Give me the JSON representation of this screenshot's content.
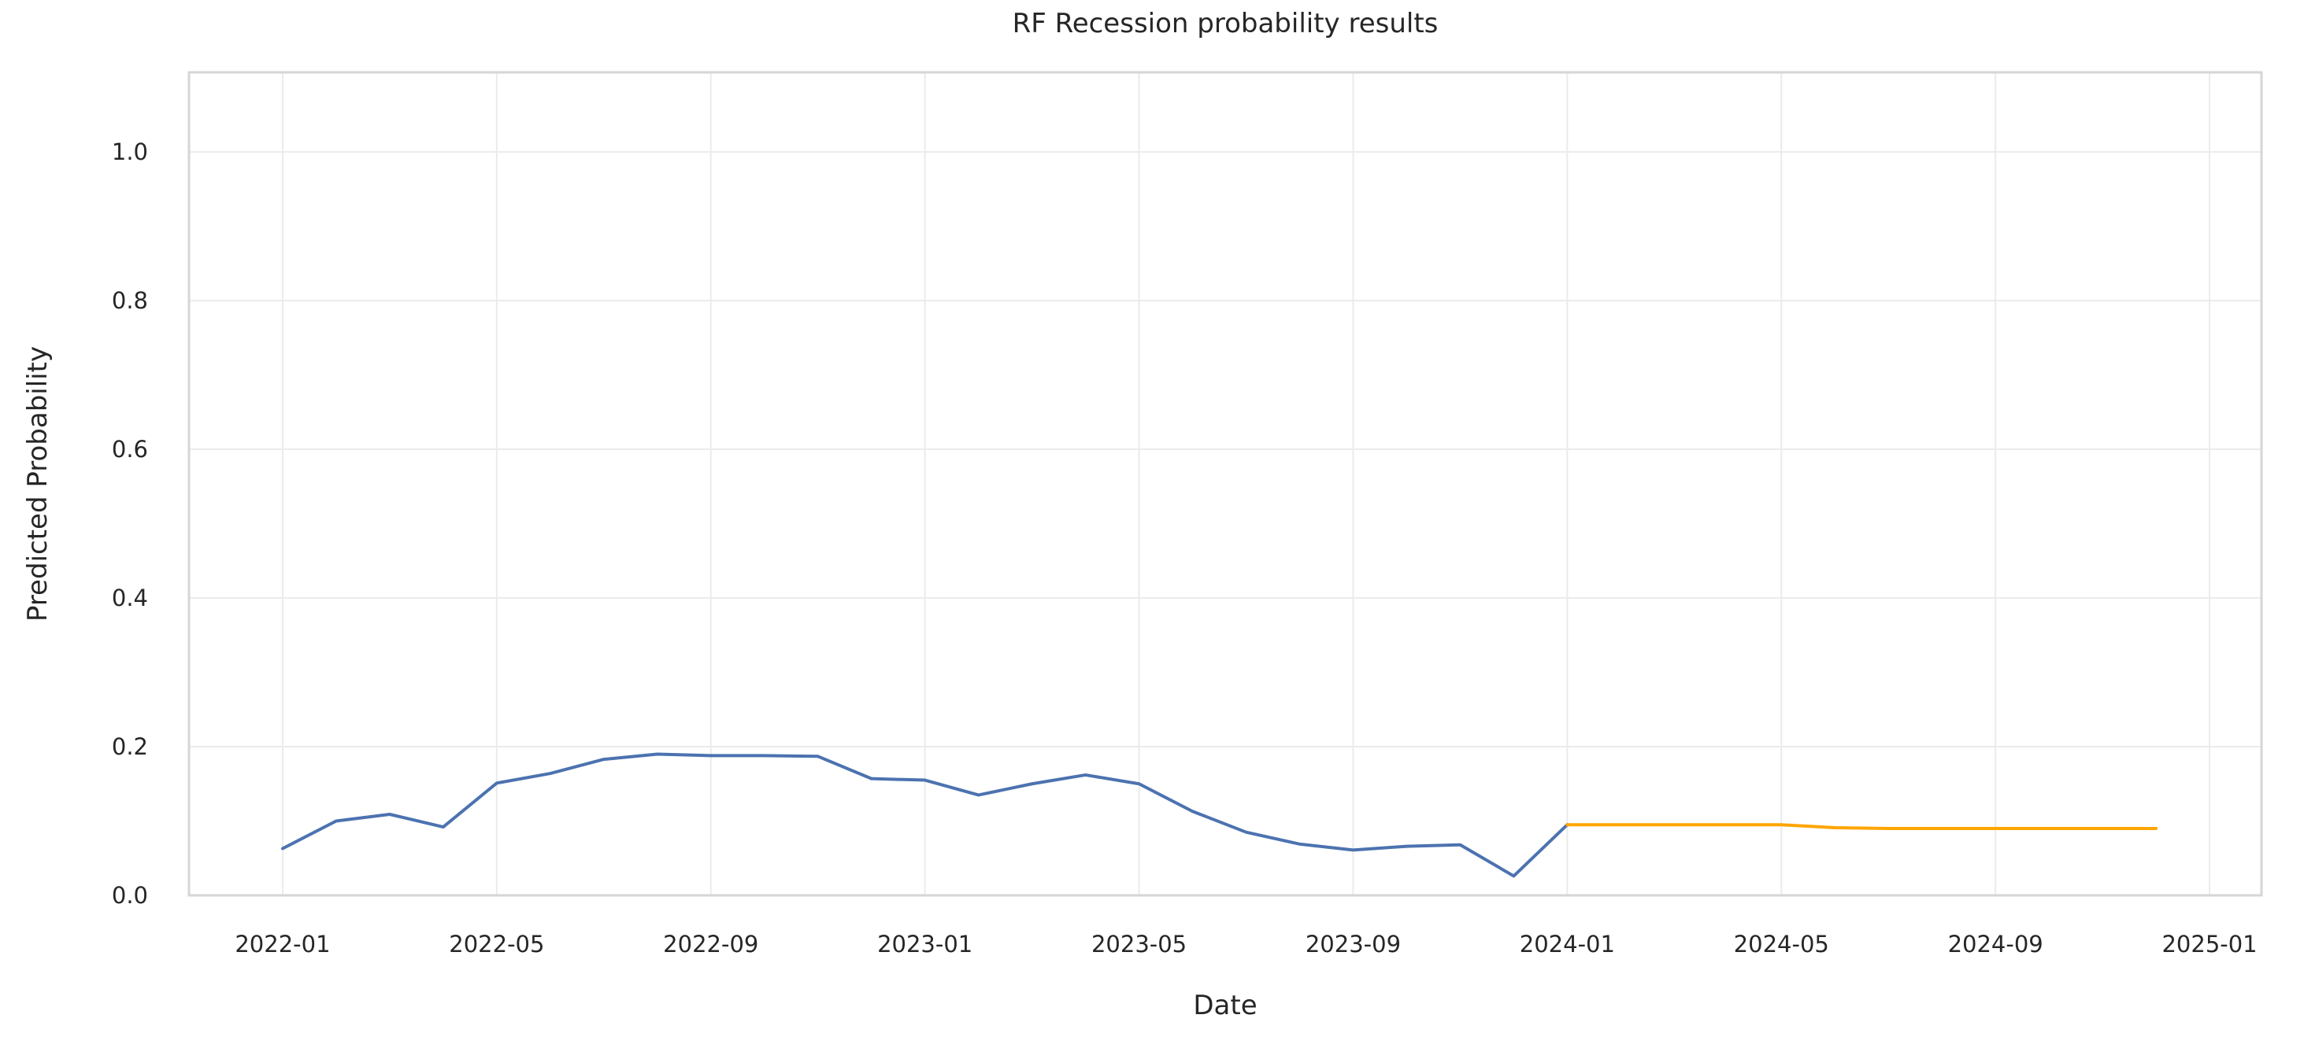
{
  "chart_data": {
    "type": "line",
    "title": "RF Recession probability results",
    "xlabel": "Date",
    "ylabel": "Predicted Probability",
    "x_tick_labels": [
      "2022-01",
      "2022-05",
      "2022-09",
      "2023-01",
      "2023-05",
      "2023-09",
      "2024-01",
      "2024-05",
      "2024-09",
      "2025-01"
    ],
    "y_tick_labels": [
      "0.0",
      "0.2",
      "0.4",
      "0.6",
      "0.8",
      "1.0"
    ],
    "y_ticks": [
      0.0,
      0.2,
      0.4,
      0.6,
      0.8,
      1.0
    ],
    "ylim": [
      0,
      1.107
    ],
    "grid": true,
    "legend": "none",
    "series": [
      {
        "name": "blue_line",
        "color": "#4C72B0",
        "x": [
          "2022-01",
          "2022-02",
          "2022-03",
          "2022-04",
          "2022-05",
          "2022-06",
          "2022-07",
          "2022-08",
          "2022-09",
          "2022-10",
          "2022-11",
          "2022-12",
          "2023-01",
          "2023-02",
          "2023-03",
          "2023-04",
          "2023-05",
          "2023-06",
          "2023-07",
          "2023-08",
          "2023-09",
          "2023-10",
          "2023-11",
          "2023-12",
          "2024-01"
        ],
        "values": [
          0.063,
          0.1,
          0.109,
          0.092,
          0.151,
          0.164,
          0.183,
          0.19,
          0.188,
          0.188,
          0.187,
          0.157,
          0.155,
          0.135,
          0.15,
          0.162,
          0.15,
          0.113,
          0.085,
          0.069,
          0.061,
          0.066,
          0.068,
          0.026,
          0.095
        ]
      },
      {
        "name": "orange_line",
        "color": "#FFA500",
        "x": [
          "2024-01",
          "2024-02",
          "2024-03",
          "2024-04",
          "2024-05",
          "2024-06",
          "2024-07",
          "2024-08",
          "2024-09",
          "2024-10",
          "2024-11",
          "2024-12"
        ],
        "values": [
          0.095,
          0.095,
          0.095,
          0.095,
          0.095,
          0.091,
          0.09,
          0.09,
          0.09,
          0.09,
          0.09,
          0.09
        ]
      }
    ],
    "style": {
      "background": "#ffffff",
      "grid_color": "#ebebeb",
      "spine_color": "#d6d6d6",
      "text_color": "#262626"
    }
  }
}
